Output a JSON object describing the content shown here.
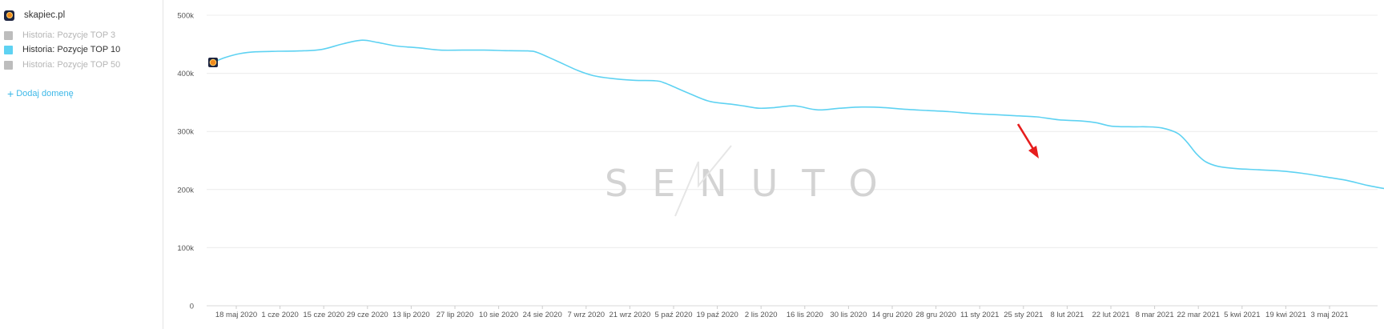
{
  "sidebar": {
    "domain": "skapiec.pl",
    "legend": [
      {
        "label": "Historia: Pozycje TOP 3",
        "active": false
      },
      {
        "label": "Historia: Pozycje TOP 10",
        "active": true
      },
      {
        "label": "Historia: Pozycje TOP 50",
        "active": false
      }
    ],
    "add_domain": "Dodaj domenę"
  },
  "watermark": "SENUTO",
  "colors": {
    "series": "#5ed2f2",
    "arrow": "#e61d1d",
    "grid": "#ececec"
  },
  "chart_data": {
    "type": "line",
    "ylim": [
      0,
      500000
    ],
    "y_ticks": [
      "0",
      "100k",
      "200k",
      "300k",
      "400k",
      "500k"
    ],
    "x_ticks": [
      "18 maj 2020",
      "1 cze 2020",
      "15 cze 2020",
      "29 cze 2020",
      "13 lip 2020",
      "27 lip 2020",
      "10 sie 2020",
      "24 sie 2020",
      "7 wrz 2020",
      "21 wrz 2020",
      "5 paź 2020",
      "19 paź 2020",
      "2 lis 2020",
      "16 lis 2020",
      "30 lis 2020",
      "14 gru 2020",
      "28 gru 2020",
      "11 sty 2021",
      "25 sty 2021",
      "8 lut 2021",
      "22 lut 2021",
      "8 mar 2021",
      "22 mar 2021",
      "5 kwi 2021",
      "19 kwi 2021",
      "3 maj 2021"
    ],
    "series": [
      {
        "values": [
          [
            0,
            418000
          ],
          [
            4,
            427000
          ],
          [
            9,
            434000
          ],
          [
            14,
            437000
          ],
          [
            21,
            438000
          ],
          [
            28,
            438500
          ],
          [
            35,
            441000
          ],
          [
            42,
            451000
          ],
          [
            48,
            457000
          ],
          [
            53,
            453000
          ],
          [
            59,
            447000
          ],
          [
            66,
            444000
          ],
          [
            73,
            440000
          ],
          [
            80,
            440000
          ],
          [
            87,
            440000
          ],
          [
            94,
            439000
          ],
          [
            101,
            438500
          ],
          [
            104,
            436000
          ],
          [
            110,
            422000
          ],
          [
            117,
            405000
          ],
          [
            122,
            396000
          ],
          [
            128,
            391000
          ],
          [
            135,
            388000
          ],
          [
            142,
            387000
          ],
          [
            145,
            383000
          ],
          [
            152,
            367000
          ],
          [
            159,
            352000
          ],
          [
            166,
            347000
          ],
          [
            170,
            344000
          ],
          [
            175,
            340000
          ],
          [
            180,
            341000
          ],
          [
            185,
            344000
          ],
          [
            188,
            343000
          ],
          [
            194,
            337000
          ],
          [
            201,
            340000
          ],
          [
            208,
            342000
          ],
          [
            215,
            341000
          ],
          [
            222,
            338000
          ],
          [
            229,
            336000
          ],
          [
            236,
            334000
          ],
          [
            243,
            331000
          ],
          [
            250,
            329000
          ],
          [
            257,
            327000
          ],
          [
            264,
            325000
          ],
          [
            271,
            320000
          ],
          [
            278,
            318000
          ],
          [
            283,
            315000
          ],
          [
            288,
            309000
          ],
          [
            295,
            308000
          ],
          [
            299,
            308000
          ],
          [
            304,
            306000
          ],
          [
            309,
            297000
          ],
          [
            312,
            282000
          ],
          [
            315,
            262000
          ],
          [
            318,
            248000
          ],
          [
            322,
            240000
          ],
          [
            328,
            236000
          ],
          [
            335,
            234000
          ],
          [
            342,
            232000
          ],
          [
            349,
            228000
          ],
          [
            356,
            222000
          ],
          [
            363,
            216000
          ],
          [
            370,
            207000
          ],
          [
            377,
            200000
          ],
          [
            384,
            193000
          ],
          [
            391,
            189000
          ],
          [
            398,
            184000
          ],
          [
            405,
            182000
          ],
          [
            412,
            180000
          ],
          [
            419,
            177000
          ],
          [
            426,
            173000
          ],
          [
            433,
            165000
          ],
          [
            440,
            161000
          ],
          [
            447,
            158000
          ],
          [
            453,
            155000
          ]
        ]
      }
    ]
  }
}
